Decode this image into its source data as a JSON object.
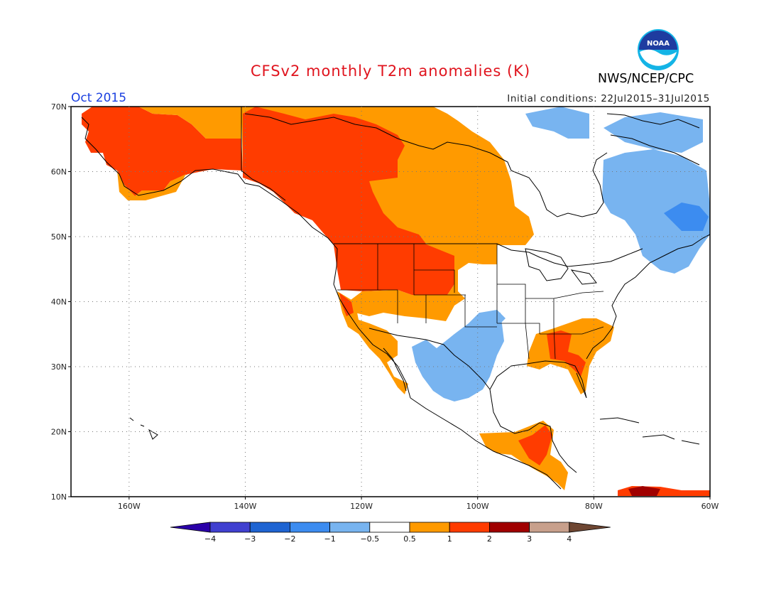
{
  "header": {
    "title": "CFSv2 monthly T2m anomalies (K)",
    "month": "Oct 2015",
    "initial_conditions": "Initial conditions: 22Jul2015–31Jul2015",
    "agency": "NWS/NCEP/CPC",
    "logo_text": "NOAA"
  },
  "map": {
    "lat_labels": [
      "70N",
      "60N",
      "50N",
      "40N",
      "30N",
      "20N",
      "10N"
    ],
    "lon_labels": [
      "160W",
      "140W",
      "120W",
      "100W",
      "80W",
      "60W"
    ],
    "lat_range": [
      10,
      70
    ],
    "lon_range": [
      -170,
      -60
    ],
    "grid": true
  },
  "colorbar": {
    "colors": [
      "#2a00a8",
      "#4040d0",
      "#1e64d2",
      "#3c8cf0",
      "#78b4f0",
      "#ffffff",
      "#ff9a00",
      "#ff3c00",
      "#a00000",
      "#c8a08c",
      "#6e4632"
    ],
    "labels": [
      "−4",
      "−3",
      "−2",
      "−1",
      "−0.5",
      "0.5",
      "1",
      "2",
      "3",
      "4"
    ],
    "bounds": [
      -4,
      -3,
      -2,
      -1,
      -0.5,
      0.5,
      1,
      2,
      3,
      4
    ]
  },
  "anomaly_regions": [
    {
      "name": "alaska-yukon",
      "level": "1-2",
      "color": "#ff3c00"
    },
    {
      "name": "canada-north",
      "level": "0.5-1",
      "color": "#ff9a00"
    },
    {
      "name": "pacific-northwest",
      "level": "1-2",
      "color": "#ff3c00"
    },
    {
      "name": "central-plains-north",
      "level": "0.5-1",
      "color": "#ff9a00"
    },
    {
      "name": "southwest-texas",
      "level": "-1--0.5",
      "color": "#78b4f0"
    },
    {
      "name": "eastern-canada",
      "level": "-1--0.5",
      "color": "#78b4f0"
    },
    {
      "name": "southeast-us",
      "level": "0.5-2",
      "color": "#ff9a00"
    },
    {
      "name": "central-america",
      "level": "0.5-2",
      "color": "#ff9a00"
    },
    {
      "name": "caribbean-south",
      "level": "2-3",
      "color": "#a00000"
    }
  ]
}
